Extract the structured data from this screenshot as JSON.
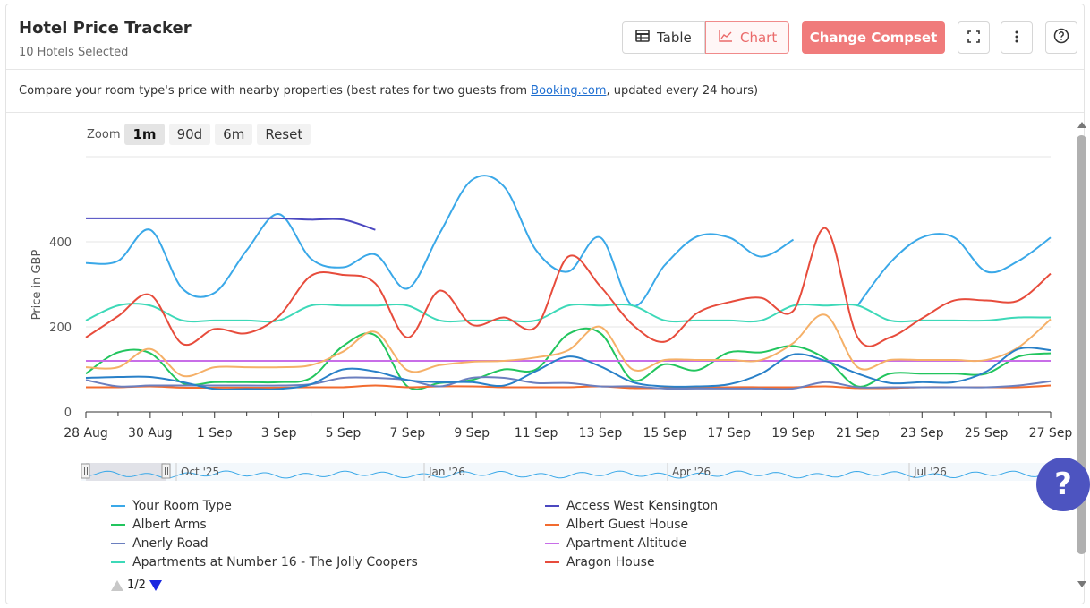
{
  "header": {
    "title": "Hotel Price Tracker",
    "subtitle": "10 Hotels Selected",
    "table_label": "Table",
    "chart_label": "Chart",
    "compset_label": "Change Compset"
  },
  "description": {
    "before": "Compare your room type's price with nearby properties (best rates for two guests from ",
    "link": "Booking.com",
    "after": ", updated every 24 hours)"
  },
  "zoom": {
    "label": "Zoom",
    "options": [
      "1m",
      "90d",
      "6m",
      "Reset"
    ],
    "selected": "1m"
  },
  "navigator": {
    "labels": [
      "Oct '25",
      "Jan '26",
      "Apr '26",
      "Jul '26"
    ]
  },
  "legend": {
    "page": "1/2"
  },
  "help_fab": "?",
  "chart_data": {
    "type": "line",
    "ylabel": "Price in GBP",
    "ylim": [
      0,
      600
    ],
    "yticks": [
      0,
      200,
      400
    ],
    "x_tick_labels": [
      "28 Aug",
      "30 Aug",
      "1 Sep",
      "3 Sep",
      "5 Sep",
      "7 Sep",
      "9 Sep",
      "11 Sep",
      "13 Sep",
      "15 Sep",
      "17 Sep",
      "19 Sep",
      "21 Sep",
      "23 Sep",
      "25 Sep",
      "27 Sep"
    ],
    "x_days": 30,
    "x": [
      "28 Aug",
      "29 Aug",
      "30 Aug",
      "31 Aug",
      "1 Sep",
      "2 Sep",
      "3 Sep",
      "4 Sep",
      "5 Sep",
      "6 Sep",
      "7 Sep",
      "8 Sep",
      "9 Sep",
      "10 Sep",
      "11 Sep",
      "12 Sep",
      "13 Sep",
      "14 Sep",
      "15 Sep",
      "16 Sep",
      "17 Sep",
      "18 Sep",
      "19 Sep",
      "20 Sep",
      "21 Sep",
      "22 Sep",
      "23 Sep",
      "24 Sep",
      "25 Sep",
      "26 Sep",
      "27 Sep"
    ],
    "grid": true,
    "legend_position": "bottom",
    "series": [
      {
        "name": "Your Room Type",
        "color": "#3aa8e8",
        "values": [
          350,
          355,
          428,
          290,
          280,
          380,
          465,
          360,
          340,
          370,
          290,
          420,
          545,
          530,
          380,
          330,
          410,
          250,
          345,
          412,
          410,
          365,
          405,
          null,
          250,
          350,
          410,
          410,
          330,
          355,
          410
        ]
      },
      {
        "name": "Access West Kensington",
        "color": "#4b48c0",
        "values": [
          455,
          455,
          455,
          455,
          455,
          455,
          455,
          452,
          452,
          428,
          null,
          null,
          null,
          null,
          null,
          null,
          null,
          null,
          null,
          null,
          null,
          null,
          null,
          null,
          null,
          null,
          null,
          null,
          null,
          null,
          null
        ]
      },
      {
        "name": "Albert Arms",
        "color": "#22c55e",
        "values": [
          90,
          140,
          138,
          68,
          70,
          70,
          70,
          80,
          155,
          180,
          60,
          68,
          75,
          100,
          100,
          183,
          185,
          75,
          112,
          98,
          140,
          140,
          155,
          125,
          60,
          90,
          90,
          90,
          90,
          130,
          138
        ]
      },
      {
        "name": "Albert Guest House",
        "color": "#f26b2f",
        "values": [
          58,
          58,
          60,
          57,
          57,
          57,
          57,
          58,
          58,
          62,
          58,
          60,
          60,
          58,
          58,
          58,
          60,
          56,
          56,
          57,
          58,
          58,
          58,
          60,
          56,
          56,
          58,
          58,
          58,
          58,
          62
        ]
      },
      {
        "name": "Anerly Road",
        "color": "#6b7fbf",
        "values": [
          75,
          60,
          62,
          62,
          62,
          62,
          62,
          65,
          80,
          80,
          75,
          60,
          80,
          80,
          68,
          68,
          60,
          60,
          55,
          55,
          55,
          55,
          55,
          70,
          58,
          58,
          58,
          58,
          58,
          62,
          72
        ]
      },
      {
        "name": "Apartment Altitude",
        "color": "#c86ee8",
        "values": [
          120,
          120,
          120,
          120,
          120,
          120,
          120,
          120,
          120,
          120,
          120,
          120,
          120,
          120,
          120,
          120,
          120,
          120,
          120,
          120,
          120,
          120,
          120,
          120,
          120,
          120,
          120,
          120,
          120,
          120,
          120
        ]
      },
      {
        "name": "Apartments at Number 16 - The Jolly Coopers",
        "color": "#3dd9b8",
        "values": [
          215,
          250,
          250,
          215,
          215,
          215,
          215,
          250,
          250,
          250,
          250,
          215,
          215,
          215,
          215,
          250,
          250,
          250,
          215,
          215,
          215,
          215,
          250,
          250,
          250,
          215,
          215,
          215,
          215,
          222,
          222
        ]
      },
      {
        "name": "Aragon House",
        "color": "#e74c3c",
        "values": [
          175,
          225,
          275,
          160,
          195,
          185,
          225,
          320,
          322,
          302,
          175,
          285,
          205,
          222,
          200,
          365,
          295,
          205,
          165,
          232,
          258,
          268,
          238,
          432,
          175,
          175,
          220,
          262,
          262,
          262,
          325
        ]
      },
      {
        "name": "",
        "color": "#f5b068",
        "values": [
          105,
          105,
          148,
          85,
          105,
          105,
          105,
          110,
          142,
          188,
          98,
          110,
          118,
          120,
          128,
          145,
          200,
          100,
          122,
          122,
          122,
          122,
          162,
          228,
          105,
          122,
          122,
          122,
          122,
          152,
          218
        ]
      },
      {
        "name": "",
        "color": "#2980c8",
        "values": [
          80,
          82,
          82,
          70,
          54,
          54,
          54,
          65,
          100,
          95,
          75,
          70,
          70,
          62,
          96,
          130,
          107,
          70,
          60,
          60,
          65,
          90,
          135,
          120,
          90,
          68,
          70,
          70,
          95,
          148,
          145
        ]
      }
    ]
  }
}
